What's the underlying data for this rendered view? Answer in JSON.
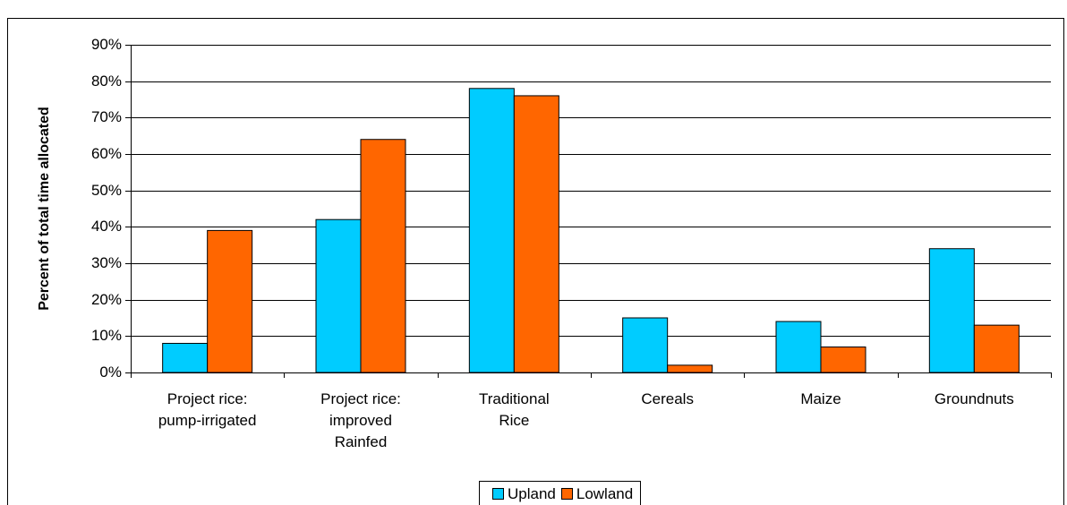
{
  "chart_data": {
    "type": "bar",
    "y_label": "Percent of total time allocated",
    "categories": [
      "Project rice:\npump-irrigated",
      "Project rice:\nimproved\nRainfed",
      "Traditional\nRice",
      "Cereals",
      "Maize",
      "Groundnuts"
    ],
    "series": [
      {
        "name": "Upland",
        "color": "#00ccff",
        "values": [
          8,
          42,
          78,
          15,
          14,
          34
        ]
      },
      {
        "name": "Lowland",
        "color": "#ff6600",
        "values": [
          39,
          64,
          76,
          2,
          7,
          13
        ]
      }
    ],
    "ylim": [
      0,
      90
    ],
    "yticks": [
      {
        "value": 0,
        "label": "0%"
      },
      {
        "value": 10,
        "label": "10%"
      },
      {
        "value": 20,
        "label": "20%"
      },
      {
        "value": 30,
        "label": "30%"
      },
      {
        "value": 40,
        "label": "40%"
      },
      {
        "value": 50,
        "label": "50%"
      },
      {
        "value": 60,
        "label": "60%"
      },
      {
        "value": 70,
        "label": "70%"
      },
      {
        "value": 80,
        "label": "80%"
      },
      {
        "value": 90,
        "label": "90%"
      }
    ],
    "grid": true
  }
}
